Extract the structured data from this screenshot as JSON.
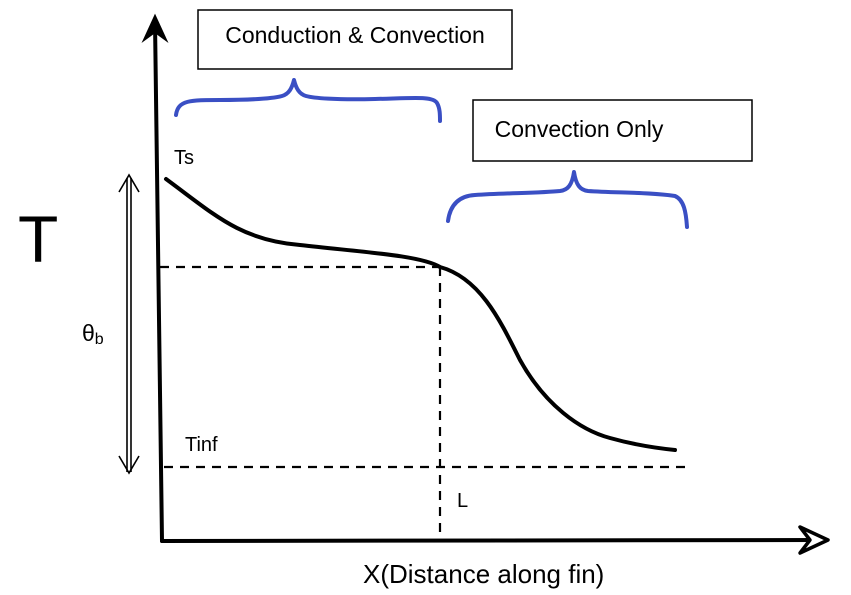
{
  "labels": {
    "y_axis": "T",
    "x_axis": "X(Distance along fin)",
    "surface_temp": "Ts",
    "ambient_temp": "Tinf",
    "theta_symbol": "θ",
    "theta_subscript": "b",
    "length": "L"
  },
  "regions": {
    "conduction_convection": "Conduction & Convection",
    "convection_only": "Convection Only"
  },
  "colors": {
    "brace": "#3a4fc4",
    "lines": "#000000"
  }
}
